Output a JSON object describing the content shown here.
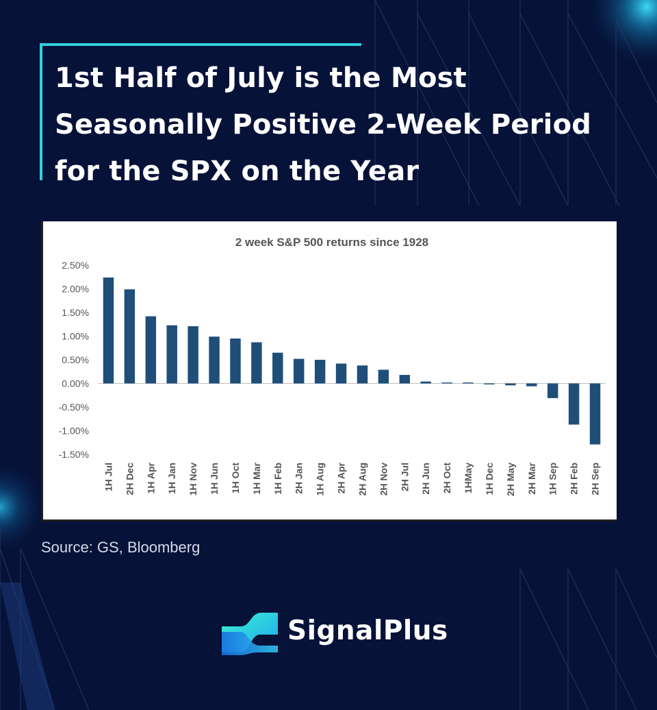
{
  "headline": "1st Half of July is the Most Seasonally Positive 2-Week Period for the SPX on the Year",
  "source": "Source: GS, Bloomberg",
  "brand": {
    "name": "SignalPlus",
    "logo_icon": "signalplus-logo-icon"
  },
  "colors": {
    "background": "#061238",
    "accent": "#2fd1dc",
    "bar": "#1f4e79",
    "text": "#ffffff"
  },
  "chart_data": {
    "type": "bar",
    "title": "2 week S&P 500 returns since 1928",
    "xlabel": "",
    "ylabel": "",
    "ylim": [
      -1.5,
      2.5
    ],
    "ytick_labels": [
      "2.50%",
      "2.00%",
      "1.50%",
      "1.00%",
      "0.50%",
      "0.00%",
      "-0.50%",
      "-1.00%",
      "-1.50%"
    ],
    "categories": [
      "1H Jul",
      "2H Dec",
      "1H Apr",
      "1H Jan",
      "1H Nov",
      "1H Jun",
      "1H Oct",
      "1H Mar",
      "1H Feb",
      "2H Jan",
      "1H Aug",
      "2H Apr",
      "2H Aug",
      "2H Nov",
      "2H Jul",
      "2H Jun",
      "2H Oct",
      "1HMay",
      "1H Dec",
      "2H May",
      "2H Mar",
      "1H Sep",
      "2H Feb",
      "2H Sep"
    ],
    "values": [
      2.24,
      1.99,
      1.42,
      1.23,
      1.21,
      0.99,
      0.95,
      0.87,
      0.65,
      0.52,
      0.5,
      0.42,
      0.38,
      0.29,
      0.18,
      0.04,
      0.02,
      0.02,
      -0.02,
      -0.04,
      -0.06,
      -0.31,
      -0.87,
      -1.29
    ],
    "grid": false,
    "legend": "none"
  }
}
